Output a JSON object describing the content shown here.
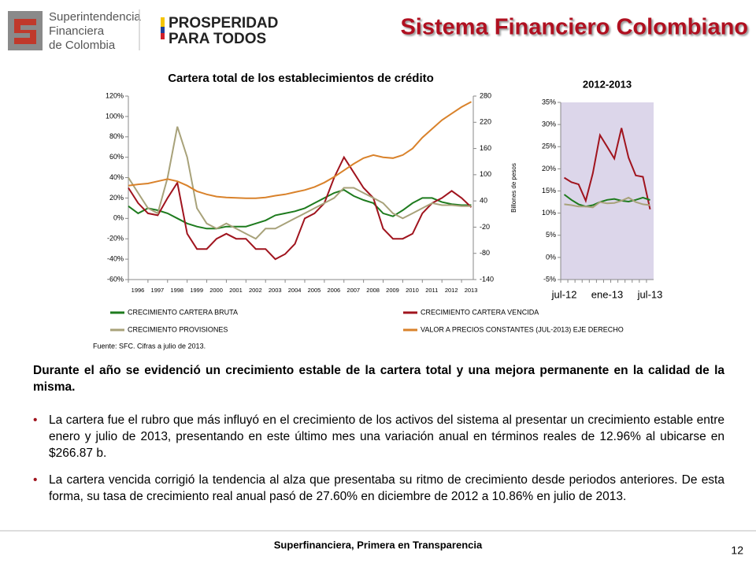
{
  "header": {
    "logo_lines": [
      "Superintendencia",
      "Financiera",
      "de Colombia"
    ],
    "brand_lines": [
      "PROSPERIDAD",
      "PARA TODOS"
    ],
    "title": "Sistema Financiero Colombiano"
  },
  "chart_data": [
    {
      "type": "line",
      "title": "Cartera total de los establecimientos de crédito",
      "y2_label": "Billones de pesos",
      "source": "Fuente: SFC. Cifras a julio de 2013.",
      "x": [
        1996.0,
        1996.5,
        1997.0,
        1997.5,
        1998.0,
        1998.5,
        1999.0,
        1999.5,
        2000.0,
        2000.5,
        2001.0,
        2001.5,
        2002.0,
        2002.5,
        2003.0,
        2003.5,
        2004.0,
        2004.5,
        2005.0,
        2005.5,
        2006.0,
        2006.5,
        2007.0,
        2007.5,
        2008.0,
        2008.5,
        2009.0,
        2009.5,
        2010.0,
        2010.5,
        2011.0,
        2011.5,
        2012.0,
        2012.5,
        2013.0,
        2013.5
      ],
      "xlim": [
        1996,
        2013.6
      ],
      "xticks": [
        1996,
        1997,
        1998,
        1999,
        2000,
        2001,
        2002,
        2003,
        2004,
        2005,
        2006,
        2007,
        2008,
        2009,
        2010,
        2011,
        2012,
        2013
      ],
      "ylim": [
        -60,
        120
      ],
      "yticks": [
        {
          "value": -60,
          "label": "-60%"
        },
        {
          "value": -40,
          "label": "-40%"
        },
        {
          "value": -20,
          "label": "-20%"
        },
        {
          "value": 0,
          "label": "0%"
        },
        {
          "value": 20,
          "label": "20%"
        },
        {
          "value": 40,
          "label": "40%"
        },
        {
          "value": 60,
          "label": "60%"
        },
        {
          "value": 80,
          "label": "80%"
        },
        {
          "value": 100,
          "label": "100%"
        },
        {
          "value": 120,
          "label": "120%"
        }
      ],
      "y2lim": [
        -140,
        280
      ],
      "y2ticks": [
        -140,
        -80,
        -20,
        40,
        100,
        160,
        220,
        280
      ],
      "series": [
        {
          "name": "CRECIMIENTO CARTERA BRUTA",
          "color": "#1e7b1e",
          "values": [
            12,
            5,
            10,
            8,
            5,
            0,
            -5,
            -8,
            -10,
            -10,
            -8,
            -8,
            -8,
            -5,
            -2,
            3,
            5,
            7,
            10,
            15,
            20,
            25,
            28,
            22,
            18,
            15,
            5,
            2,
            8,
            15,
            20,
            20,
            16,
            14,
            13,
            13
          ]
        },
        {
          "name": "CRECIMIENTO CARTERA VENCIDA",
          "color": "#a0141e",
          "values": [
            30,
            15,
            5,
            3,
            20,
            35,
            -15,
            -30,
            -30,
            -20,
            -15,
            -20,
            -20,
            -30,
            -30,
            -40,
            -35,
            -25,
            0,
            5,
            15,
            40,
            60,
            45,
            30,
            20,
            -10,
            -20,
            -20,
            -15,
            5,
            15,
            20,
            27,
            20,
            11
          ]
        },
        {
          "name": "CRECIMIENTO PROVISIONES",
          "color": "#a8a27a",
          "values": [
            40,
            25,
            10,
            5,
            40,
            90,
            60,
            10,
            -5,
            -10,
            -5,
            -10,
            -15,
            -20,
            -10,
            -10,
            -5,
            0,
            5,
            10,
            15,
            20,
            30,
            30,
            25,
            20,
            15,
            5,
            0,
            5,
            10,
            15,
            13,
            13,
            12,
            12
          ]
        },
        {
          "name": "VALOR A PRECIOS CONSTANTES (JUL-2013) EJE DERECHO",
          "color": "#d9822b",
          "axis": "y2",
          "values": [
            75,
            78,
            80,
            85,
            90,
            85,
            75,
            62,
            55,
            50,
            48,
            47,
            46,
            46,
            48,
            52,
            55,
            60,
            65,
            72,
            82,
            95,
            110,
            125,
            138,
            145,
            140,
            138,
            145,
            160,
            185,
            205,
            225,
            240,
            255,
            267
          ]
        }
      ]
    },
    {
      "type": "line",
      "title": "2012-2013",
      "categories": [
        "jul-12",
        null,
        null,
        null,
        null,
        null,
        "ene-13",
        null,
        null,
        null,
        null,
        null,
        "jul-13"
      ],
      "ylim": [
        -5,
        35
      ],
      "yticks": [
        {
          "value": -5,
          "label": "-5%"
        },
        {
          "value": 0,
          "label": "0%"
        },
        {
          "value": 5,
          "label": "5%"
        },
        {
          "value": 10,
          "label": "10%"
        },
        {
          "value": 15,
          "label": "15%"
        },
        {
          "value": 20,
          "label": "20%"
        },
        {
          "value": 25,
          "label": "25%"
        },
        {
          "value": 30,
          "label": "30%"
        },
        {
          "value": 35,
          "label": "35%"
        }
      ],
      "background": "#dcd6ea",
      "series": [
        {
          "name": "CRECIMIENTO CARTERA VENCIDA",
          "color": "#a0141e",
          "values": [
            18,
            17,
            16.5,
            12.8,
            19,
            27.6,
            25,
            22.3,
            29.2,
            22.5,
            18.5,
            18.2,
            10.86
          ]
        },
        {
          "name": "CRECIMIENTO CARTERA BRUTA",
          "color": "#1e7b1e",
          "values": [
            14.2,
            13,
            12,
            11.5,
            11.8,
            12.5,
            13,
            13.2,
            12.8,
            12.6,
            13,
            13.5,
            12.96
          ]
        },
        {
          "name": "CRECIMIENTO PROVISIONES",
          "color": "#a8a27a",
          "values": [
            12,
            11.8,
            11.5,
            11.5,
            11.3,
            12.5,
            12.2,
            12.3,
            12.8,
            13.5,
            12.5,
            12,
            11.8
          ]
        }
      ]
    }
  ],
  "body": {
    "intro": "Durante el año se evidenció un crecimiento estable de la cartera total  y una mejora permanente en la calidad de la misma.",
    "bullets": [
      "La cartera fue el rubro que más influyó en el crecimiento de los activos del sistema al presentar un crecimiento estable entre enero y julio de 2013, presentando en este último mes una variación anual en términos reales de 12.96% al ubicarse en $266.87 b.",
      "La cartera vencida corrigió la tendencia al alza que presentaba su ritmo de crecimiento desde periodos anteriores. De esta forma, su tasa de crecimiento real anual pasó de 27.60% en diciembre de 2012 a 10.86% en julio de 2013."
    ]
  },
  "footer": {
    "slogan": "Superfinanciera, Primera en Transparencia",
    "page": "12"
  }
}
